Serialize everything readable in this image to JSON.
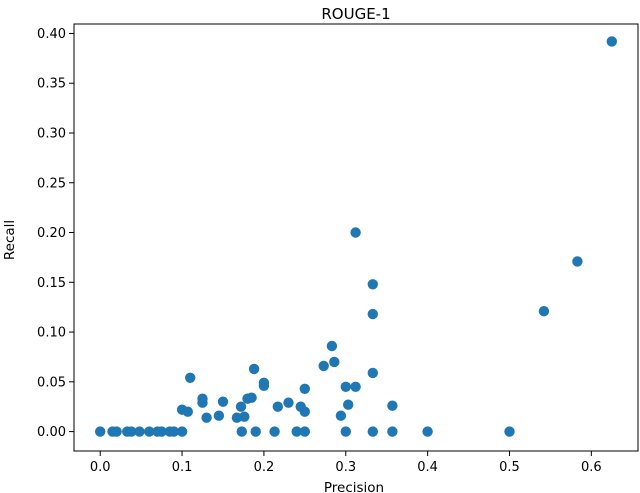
{
  "chart_data": {
    "type": "scatter",
    "title": "ROUGE-1",
    "xlabel": "Precision",
    "ylabel": "Recall",
    "xlim": [
      -0.032,
      0.657
    ],
    "ylim": [
      -0.0195,
      0.4095
    ],
    "xticks": [
      "0.0",
      "0.1",
      "0.2",
      "0.3",
      "0.4",
      "0.5",
      "0.6"
    ],
    "yticks": [
      "0.00",
      "0.05",
      "0.10",
      "0.15",
      "0.20",
      "0.25",
      "0.30",
      "0.35",
      "0.40"
    ],
    "grid": false,
    "marker_color": "#1f77b4",
    "points": [
      {
        "x": 0.0,
        "y": 0.0
      },
      {
        "x": 0.015,
        "y": 0.0
      },
      {
        "x": 0.02,
        "y": 0.0
      },
      {
        "x": 0.033,
        "y": 0.0
      },
      {
        "x": 0.038,
        "y": 0.0
      },
      {
        "x": 0.048,
        "y": 0.0
      },
      {
        "x": 0.06,
        "y": 0.0
      },
      {
        "x": 0.07,
        "y": 0.0
      },
      {
        "x": 0.075,
        "y": 0.0
      },
      {
        "x": 0.085,
        "y": 0.0
      },
      {
        "x": 0.09,
        "y": 0.0
      },
      {
        "x": 0.1,
        "y": 0.0
      },
      {
        "x": 0.1,
        "y": 0.022
      },
      {
        "x": 0.107,
        "y": 0.02
      },
      {
        "x": 0.11,
        "y": 0.054
      },
      {
        "x": 0.125,
        "y": 0.033
      },
      {
        "x": 0.125,
        "y": 0.029
      },
      {
        "x": 0.13,
        "y": 0.014
      },
      {
        "x": 0.145,
        "y": 0.016
      },
      {
        "x": 0.15,
        "y": 0.03
      },
      {
        "x": 0.167,
        "y": 0.014
      },
      {
        "x": 0.172,
        "y": 0.025
      },
      {
        "x": 0.173,
        "y": 0.0
      },
      {
        "x": 0.176,
        "y": 0.015
      },
      {
        "x": 0.18,
        "y": 0.033
      },
      {
        "x": 0.185,
        "y": 0.034
      },
      {
        "x": 0.188,
        "y": 0.063
      },
      {
        "x": 0.19,
        "y": 0.0
      },
      {
        "x": 0.2,
        "y": 0.049
      },
      {
        "x": 0.2,
        "y": 0.046
      },
      {
        "x": 0.213,
        "y": 0.0
      },
      {
        "x": 0.217,
        "y": 0.025
      },
      {
        "x": 0.23,
        "y": 0.029
      },
      {
        "x": 0.24,
        "y": 0.0
      },
      {
        "x": 0.245,
        "y": 0.025
      },
      {
        "x": 0.25,
        "y": 0.02
      },
      {
        "x": 0.25,
        "y": 0.0
      },
      {
        "x": 0.25,
        "y": 0.043
      },
      {
        "x": 0.273,
        "y": 0.066
      },
      {
        "x": 0.283,
        "y": 0.086
      },
      {
        "x": 0.286,
        "y": 0.07
      },
      {
        "x": 0.294,
        "y": 0.016
      },
      {
        "x": 0.3,
        "y": 0.045
      },
      {
        "x": 0.3,
        "y": 0.0
      },
      {
        "x": 0.303,
        "y": 0.027
      },
      {
        "x": 0.312,
        "y": 0.045
      },
      {
        "x": 0.312,
        "y": 0.2
      },
      {
        "x": 0.333,
        "y": 0.148
      },
      {
        "x": 0.333,
        "y": 0.118
      },
      {
        "x": 0.333,
        "y": 0.059
      },
      {
        "x": 0.333,
        "y": 0.0
      },
      {
        "x": 0.357,
        "y": 0.026
      },
      {
        "x": 0.357,
        "y": 0.0
      },
      {
        "x": 0.4,
        "y": 0.0
      },
      {
        "x": 0.5,
        "y": 0.0
      },
      {
        "x": 0.542,
        "y": 0.121
      },
      {
        "x": 0.583,
        "y": 0.171
      },
      {
        "x": 0.625,
        "y": 0.392
      }
    ]
  }
}
